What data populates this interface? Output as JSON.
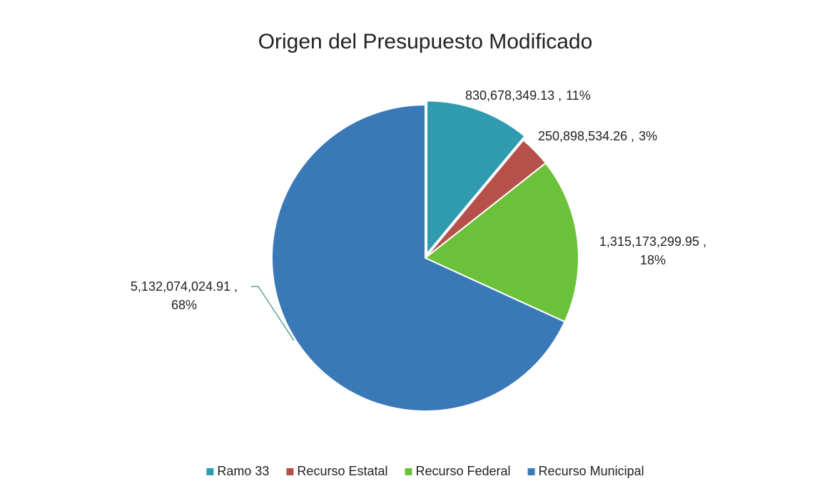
{
  "chart_data": {
    "type": "pie",
    "title": "Origen del Presupuesto Modificado",
    "categories": [
      "Ramo 33",
      "Recurso Estatal",
      "Recurso Federal",
      "Recurso Municipal"
    ],
    "values": [
      830678349.13,
      250898534.26,
      1315173299.95,
      5132074024.91
    ],
    "value_labels": [
      "830,678,349.13 ,",
      "250,898,534.26 ,",
      "1,315,173,299.95 ,",
      "5,132,074,024.91 ,"
    ],
    "percent_labels": [
      "11%",
      "3%",
      "18%",
      "68%"
    ],
    "colors": [
      "#2e9bb0",
      "#b5504a",
      "#6cc13a",
      "#3a79b8"
    ],
    "legend": "bottom"
  }
}
